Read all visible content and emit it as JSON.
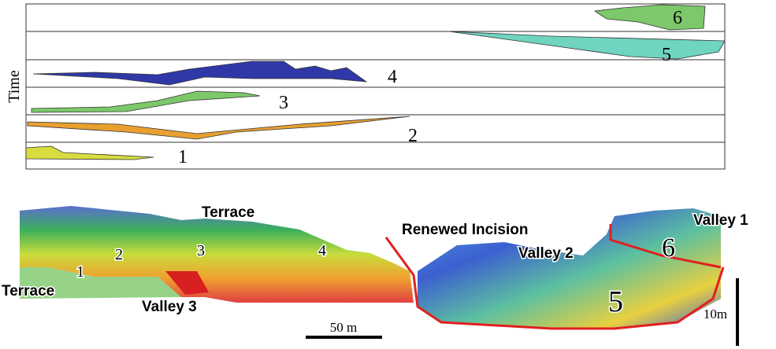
{
  "time_panel": {
    "axis_label": "Time",
    "units": [
      "1",
      "2",
      "3",
      "4",
      "5",
      "6"
    ]
  },
  "section": {
    "labels": {
      "terrace_upper": "Terrace",
      "terrace_lower": "Terrace",
      "valley_3": "Valley 3",
      "renewed_incision": "Renewed Incision",
      "valley_2": "Valley 2",
      "valley_1": "Valley 1"
    },
    "units": [
      "1",
      "2",
      "3",
      "4",
      "5",
      "6"
    ],
    "scale_bar": "50 m",
    "vertical_scale": "10m"
  }
}
